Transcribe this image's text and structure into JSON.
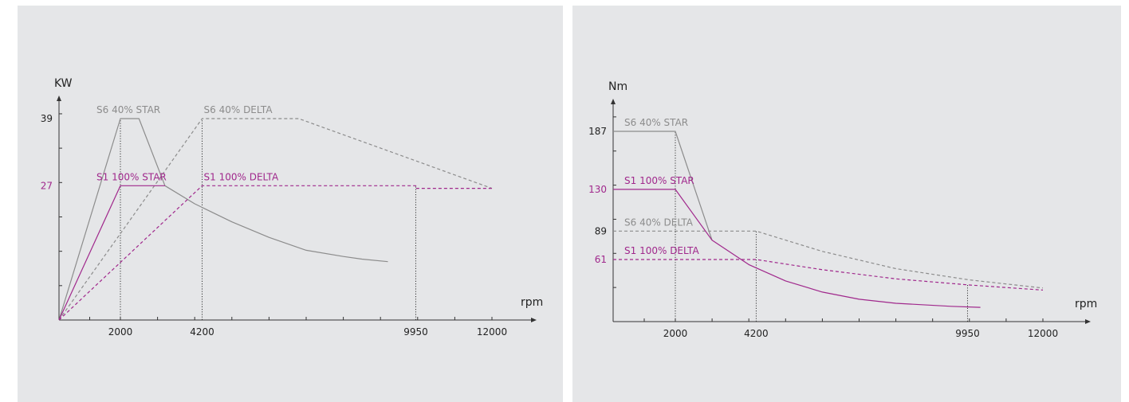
{
  "chart_data": [
    {
      "type": "line",
      "ylabel": "KW",
      "xlabel": "rpm",
      "x_ticks": [
        2000,
        4200,
        9950,
        12000
      ],
      "y_ticks": [
        39,
        27
      ],
      "xlim": [
        0,
        13000
      ],
      "ylim": [
        0,
        48
      ],
      "colors": {
        "gray": "#8c8c8c",
        "purple": "#a0288c",
        "axis": "#333333"
      },
      "series": [
        {
          "name": "S6 40% STAR",
          "color": "gray",
          "dash": false,
          "x": [
            0,
            2000,
            2500,
            3200,
            4000,
            5000,
            6000,
            7000,
            8000,
            8500,
            9200
          ],
          "y": [
            0,
            39,
            39,
            26,
            22.5,
            19,
            16,
            13.5,
            12.3,
            11.8,
            11.3
          ]
        },
        {
          "name": "S6 40% DELTA",
          "color": "gray",
          "dash": true,
          "x": [
            0,
            4200,
            6800,
            12000
          ],
          "y": [
            0,
            39,
            39,
            25.5
          ]
        },
        {
          "name": "S1 100% STAR",
          "color": "purple",
          "dash": false,
          "x": [
            0,
            2000,
            3200
          ],
          "y": [
            0,
            26,
            26
          ]
        },
        {
          "name": "S1 100% DELTA",
          "color": "purple",
          "dash": true,
          "x": [
            0,
            4200,
            9950,
            9950,
            12000
          ],
          "y": [
            0,
            26,
            26,
            25.5,
            25.5
          ]
        }
      ],
      "guides": [
        {
          "x": 2000,
          "y": 39
        },
        {
          "x": 4200,
          "y": 39
        },
        {
          "x": 9950,
          "y": 26
        }
      ],
      "labels": [
        {
          "text": "S6 40% STAR",
          "color": "gray",
          "x": 2000,
          "y": 39
        },
        {
          "text": "S6 40% DELTA",
          "color": "gray",
          "x": 4200,
          "y": 39
        },
        {
          "text": "S1 100% STAR",
          "color": "purple",
          "x": 2000,
          "y": 26
        },
        {
          "text": "S1 100% DELTA",
          "color": "purple",
          "x": 4200,
          "y": 26
        }
      ]
    },
    {
      "type": "line",
      "ylabel": "Nm",
      "xlabel": "rpm",
      "x_ticks": [
        2000,
        4200,
        9950,
        12000
      ],
      "y_ticks": [
        187,
        130,
        89,
        61
      ],
      "xlim": [
        0,
        13000
      ],
      "ylim": [
        0,
        250
      ],
      "colors": {
        "gray": "#8c8c8c",
        "purple": "#a0288c",
        "axis": "#333333"
      },
      "series": [
        {
          "name": "S6 40% STAR",
          "color": "gray",
          "dash": false,
          "x": [
            0,
            2000,
            3000
          ],
          "y": [
            187,
            187,
            80
          ]
        },
        {
          "name": "S6 40% DELTA",
          "color": "gray",
          "dash": true,
          "x": [
            0,
            4200,
            6000,
            8000,
            10000,
            12000
          ],
          "y": [
            89,
            89,
            69,
            52,
            41,
            33
          ]
        },
        {
          "name": "S1 100% STAR",
          "color": "purple",
          "dash": false,
          "x": [
            0,
            2000,
            3000,
            4000,
            5000,
            6000,
            7000,
            8000,
            9500,
            10300
          ],
          "y": [
            130,
            130,
            80,
            56,
            40,
            29,
            22,
            18,
            15,
            14
          ]
        },
        {
          "name": "S1 100% DELTA",
          "color": "purple",
          "dash": true,
          "x": [
            0,
            4200,
            6000,
            8000,
            10000,
            12000
          ],
          "y": [
            61,
            61,
            51,
            42,
            36,
            31
          ]
        }
      ],
      "guides": [
        {
          "x": 2000,
          "y": 187
        },
        {
          "x": 4200,
          "y": 89
        },
        {
          "x": 9950,
          "y": 37
        }
      ],
      "labels": [
        {
          "text": "S6 40% STAR",
          "color": "gray",
          "x": 0,
          "y": 187
        },
        {
          "text": "S1 100% STAR",
          "color": "purple",
          "x": 0,
          "y": 130
        },
        {
          "text": "S6 40% DELTA",
          "color": "gray",
          "x": 0,
          "y": 89
        },
        {
          "text": "S1 100% DELTA",
          "color": "purple",
          "x": 0,
          "y": 61
        }
      ]
    }
  ]
}
